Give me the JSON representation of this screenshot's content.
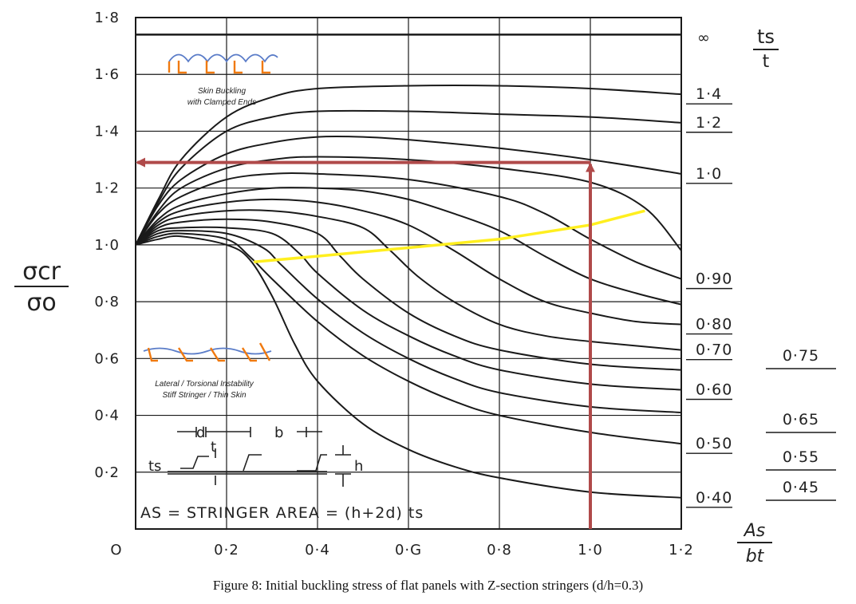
{
  "caption": "Figure 8: Initial buckling stress of flat panels with Z-section stringers (d/h=0.3)",
  "colors": {
    "ink": "#1a1a1a",
    "arrow": "#b04a4a",
    "boundary": "#ffef1f",
    "stringer": "#f07a10",
    "skin": "#5a7cc8"
  },
  "chart_data": {
    "type": "line",
    "ylabel": {
      "num": "σcr",
      "den": "σo"
    },
    "xlabel": {
      "num": "As",
      "den": "bt"
    },
    "param_label": {
      "num": "ts",
      "den": "t"
    },
    "xlim": [
      0,
      1.2
    ],
    "ylim": [
      0,
      1.8
    ],
    "x_ticks": [
      "O",
      "0·2",
      "0·4",
      "0·G",
      "0·8",
      "1·0",
      "1·2"
    ],
    "x_tick_values": [
      0,
      0.2,
      0.4,
      0.6,
      0.8,
      1.0,
      1.2
    ],
    "y_ticks": [
      "0·2",
      "0·4",
      "0·6",
      "0·8",
      "1·0",
      "1·2",
      "1·4",
      "1·6",
      "1·8"
    ],
    "y_tick_values": [
      0.2,
      0.4,
      0.6,
      0.8,
      1.0,
      1.2,
      1.4,
      1.6,
      1.8
    ],
    "grid": true,
    "series": [
      {
        "name": "∞",
        "points": [
          [
            0,
            1.74
          ],
          [
            1.2,
            1.74
          ]
        ]
      },
      {
        "name": "1·4",
        "points": [
          [
            0,
            1.0
          ],
          [
            0.05,
            1.16
          ],
          [
            0.1,
            1.3
          ],
          [
            0.2,
            1.45
          ],
          [
            0.3,
            1.52
          ],
          [
            0.4,
            1.55
          ],
          [
            0.6,
            1.56
          ],
          [
            0.8,
            1.56
          ],
          [
            1.0,
            1.55
          ],
          [
            1.2,
            1.53
          ]
        ]
      },
      {
        "name": "1·2",
        "points": [
          [
            0,
            1.0
          ],
          [
            0.05,
            1.15
          ],
          [
            0.1,
            1.27
          ],
          [
            0.2,
            1.4
          ],
          [
            0.3,
            1.45
          ],
          [
            0.4,
            1.47
          ],
          [
            0.6,
            1.47
          ],
          [
            0.8,
            1.46
          ],
          [
            1.0,
            1.45
          ],
          [
            1.2,
            1.43
          ]
        ]
      },
      {
        "name": "1·0",
        "points": [
          [
            0,
            1.0
          ],
          [
            0.05,
            1.14
          ],
          [
            0.1,
            1.23
          ],
          [
            0.2,
            1.32
          ],
          [
            0.3,
            1.36
          ],
          [
            0.4,
            1.38
          ],
          [
            0.5,
            1.38
          ],
          [
            0.6,
            1.37
          ],
          [
            0.8,
            1.34
          ],
          [
            1.0,
            1.3
          ],
          [
            1.2,
            1.25
          ]
        ]
      },
      {
        "name": "",
        "points": [
          [
            0,
            1.0
          ],
          [
            0.05,
            1.12
          ],
          [
            0.1,
            1.2
          ],
          [
            0.2,
            1.27
          ],
          [
            0.3,
            1.3
          ],
          [
            0.4,
            1.31
          ],
          [
            0.6,
            1.3
          ],
          [
            0.8,
            1.27
          ],
          [
            1.0,
            1.22
          ],
          [
            1.12,
            1.13
          ],
          [
            1.2,
            0.98
          ]
        ]
      },
      {
        "name": "0·90",
        "points": [
          [
            0,
            1.0
          ],
          [
            0.05,
            1.11
          ],
          [
            0.1,
            1.17
          ],
          [
            0.2,
            1.23
          ],
          [
            0.3,
            1.25
          ],
          [
            0.4,
            1.25
          ],
          [
            0.6,
            1.23
          ],
          [
            0.8,
            1.17
          ],
          [
            0.9,
            1.11
          ],
          [
            1.0,
            1.02
          ],
          [
            1.1,
            0.94
          ],
          [
            1.2,
            0.88
          ]
        ]
      },
      {
        "name": "",
        "points": [
          [
            0,
            1.0
          ],
          [
            0.05,
            1.09
          ],
          [
            0.1,
            1.14
          ],
          [
            0.2,
            1.18
          ],
          [
            0.3,
            1.2
          ],
          [
            0.4,
            1.2
          ],
          [
            0.5,
            1.19
          ],
          [
            0.6,
            1.16
          ],
          [
            0.7,
            1.11
          ],
          [
            0.8,
            1.05
          ],
          [
            0.9,
            0.96
          ],
          [
            1.0,
            0.88
          ],
          [
            1.1,
            0.83
          ],
          [
            1.2,
            0.79
          ]
        ]
      },
      {
        "name": "0·80",
        "points": [
          [
            0,
            1.0
          ],
          [
            0.05,
            1.08
          ],
          [
            0.1,
            1.12
          ],
          [
            0.2,
            1.15
          ],
          [
            0.3,
            1.16
          ],
          [
            0.4,
            1.15
          ],
          [
            0.5,
            1.12
          ],
          [
            0.6,
            1.07
          ],
          [
            0.7,
            0.98
          ],
          [
            0.8,
            0.88
          ],
          [
            0.9,
            0.8
          ],
          [
            1.0,
            0.76
          ],
          [
            1.1,
            0.73
          ],
          [
            1.2,
            0.72
          ]
        ]
      },
      {
        "name": "0·70",
        "points": [
          [
            0,
            1.0
          ],
          [
            0.05,
            1.07
          ],
          [
            0.1,
            1.1
          ],
          [
            0.2,
            1.12
          ],
          [
            0.3,
            1.12
          ],
          [
            0.4,
            1.1
          ],
          [
            0.5,
            1.06
          ],
          [
            0.56,
            0.98
          ],
          [
            0.62,
            0.89
          ],
          [
            0.7,
            0.8
          ],
          [
            0.8,
            0.72
          ],
          [
            0.9,
            0.68
          ],
          [
            1.0,
            0.66
          ],
          [
            1.2,
            0.63
          ]
        ]
      },
      {
        "name": "",
        "points": [
          [
            0,
            1.0
          ],
          [
            0.05,
            1.06
          ],
          [
            0.1,
            1.08
          ],
          [
            0.2,
            1.09
          ],
          [
            0.3,
            1.08
          ],
          [
            0.4,
            1.04
          ],
          [
            0.45,
            0.96
          ],
          [
            0.5,
            0.88
          ],
          [
            0.6,
            0.76
          ],
          [
            0.7,
            0.68
          ],
          [
            0.8,
            0.63
          ],
          [
            1.0,
            0.58
          ],
          [
            1.2,
            0.56
          ]
        ]
      },
      {
        "name": "0·60",
        "points": [
          [
            0,
            1.0
          ],
          [
            0.05,
            1.05
          ],
          [
            0.1,
            1.06
          ],
          [
            0.2,
            1.06
          ],
          [
            0.3,
            1.04
          ],
          [
            0.36,
            0.97
          ],
          [
            0.4,
            0.9
          ],
          [
            0.5,
            0.77
          ],
          [
            0.6,
            0.68
          ],
          [
            0.7,
            0.61
          ],
          [
            0.8,
            0.56
          ],
          [
            1.0,
            0.51
          ],
          [
            1.2,
            0.49
          ]
        ]
      },
      {
        "name": "",
        "points": [
          [
            0,
            1.0
          ],
          [
            0.05,
            1.04
          ],
          [
            0.1,
            1.05
          ],
          [
            0.2,
            1.04
          ],
          [
            0.28,
            0.99
          ],
          [
            0.32,
            0.93
          ],
          [
            0.4,
            0.81
          ],
          [
            0.5,
            0.69
          ],
          [
            0.6,
            0.6
          ],
          [
            0.7,
            0.53
          ],
          [
            0.8,
            0.48
          ],
          [
            1.0,
            0.43
          ],
          [
            1.2,
            0.41
          ]
        ]
      },
      {
        "name": "0·50",
        "points": [
          [
            0,
            1.0
          ],
          [
            0.05,
            1.03
          ],
          [
            0.1,
            1.04
          ],
          [
            0.2,
            1.02
          ],
          [
            0.25,
            0.96
          ],
          [
            0.3,
            0.88
          ],
          [
            0.4,
            0.73
          ],
          [
            0.5,
            0.61
          ],
          [
            0.6,
            0.52
          ],
          [
            0.7,
            0.45
          ],
          [
            0.8,
            0.4
          ],
          [
            1.0,
            0.34
          ],
          [
            1.2,
            0.3
          ]
        ]
      },
      {
        "name": "0·40",
        "points": [
          [
            0,
            1.0
          ],
          [
            0.05,
            1.02
          ],
          [
            0.1,
            1.03
          ],
          [
            0.2,
            1.0
          ],
          [
            0.25,
            0.95
          ],
          [
            0.3,
            0.82
          ],
          [
            0.35,
            0.65
          ],
          [
            0.4,
            0.52
          ],
          [
            0.5,
            0.37
          ],
          [
            0.6,
            0.28
          ],
          [
            0.7,
            0.22
          ],
          [
            0.8,
            0.18
          ],
          [
            1.0,
            0.13
          ],
          [
            1.2,
            0.11
          ]
        ]
      }
    ],
    "outer_labels": [
      "0·75",
      "0·65",
      "0·55",
      "0·45"
    ],
    "boundary": [
      [
        0.26,
        0.94
      ],
      [
        0.4,
        0.96
      ],
      [
        0.6,
        0.99
      ],
      [
        0.8,
        1.02
      ],
      [
        1.0,
        1.07
      ],
      [
        1.12,
        1.12
      ]
    ],
    "reading": {
      "x": 1.0,
      "y": 1.29
    },
    "annotations": {
      "top": [
        "Skin Buckling",
        "with Clamped Ends"
      ],
      "bottom": [
        "Lateral / Torsional Instability",
        "Stiff Stringer / Thin Skin"
      ],
      "formula": "AS = STRINGER AREA = (h+2d) ts",
      "geom": {
        "d": "d",
        "t": "t",
        "b": "b",
        "h": "h",
        "ts": "ts"
      }
    }
  }
}
